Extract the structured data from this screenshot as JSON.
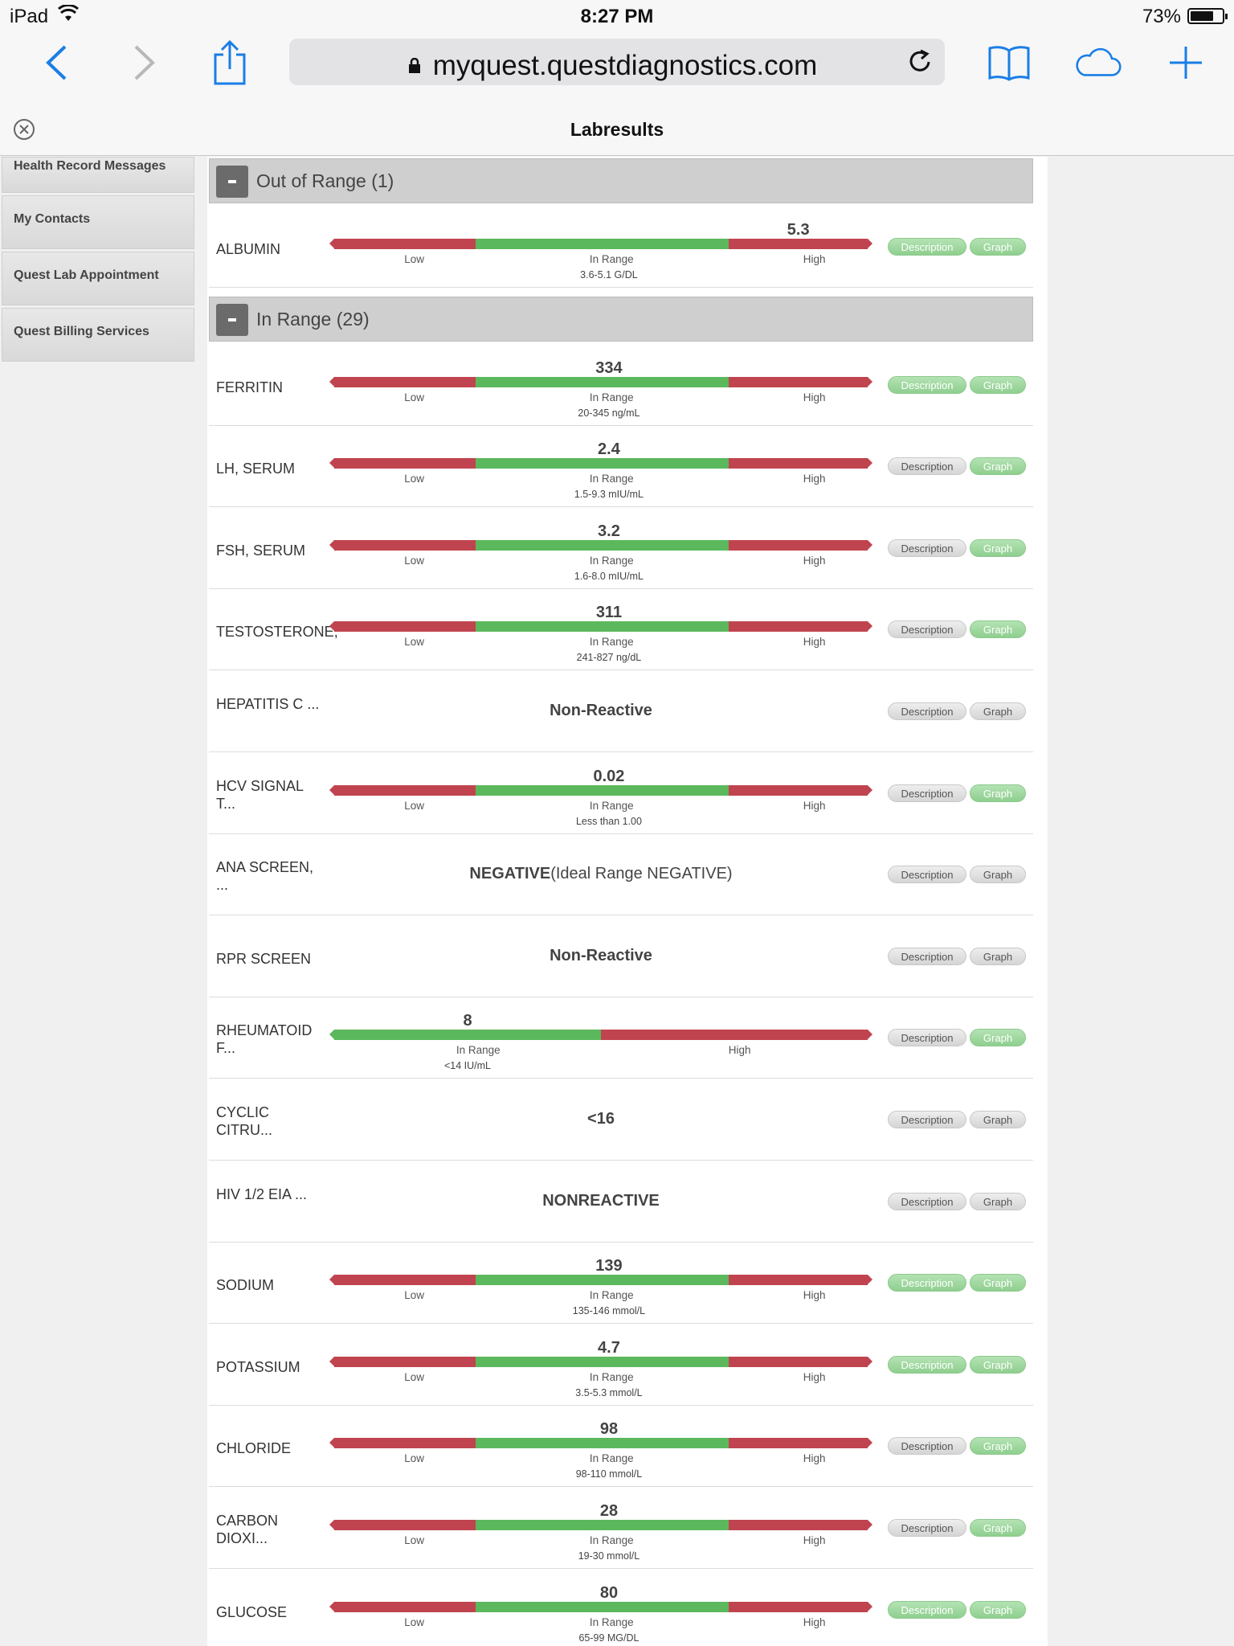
{
  "status_bar": {
    "device": "iPad",
    "time": "8:27 PM",
    "battery": "73%",
    "battery_level": 0.73
  },
  "browser": {
    "url": "myquest.questdiagnostics.com"
  },
  "page": {
    "title": "Labresults"
  },
  "sidebar": {
    "items": [
      {
        "label": "Health Record Messages"
      },
      {
        "label": "My Contacts"
      },
      {
        "label": "Quest Lab Appointment"
      },
      {
        "label": "Quest Billing Services"
      }
    ]
  },
  "labels": {
    "description": "Description",
    "graph": "Graph",
    "low": "Low",
    "in_range": "In Range",
    "high": "High"
  },
  "sections": [
    {
      "header": "Out of Range (1)",
      "rows": [
        {
          "name": "ALBUMIN",
          "type": "bar3",
          "value": "5.3",
          "range": "3.6-5.1 G/DL",
          "marker": 0.87,
          "desc_active": true,
          "graph_active": true
        }
      ]
    },
    {
      "header": "In Range (29)",
      "rows": [
        {
          "name": "FERRITIN",
          "type": "bar3",
          "value": "334",
          "range": "20-345 ng/mL",
          "marker": 0.515,
          "desc_active": true,
          "graph_active": true
        },
        {
          "name": "LH, SERUM",
          "type": "bar3",
          "value": "2.4",
          "range": "1.5-9.3 mIU/mL",
          "marker": 0.515,
          "desc_active": false,
          "graph_active": true
        },
        {
          "name": "FSH, SERUM",
          "type": "bar3",
          "value": "3.2",
          "range": "1.6-8.0 mIU/mL",
          "marker": 0.515,
          "desc_active": false,
          "graph_active": true
        },
        {
          "name": "TESTOSTERONE,",
          "type": "bar3",
          "value": "311",
          "range": "241-827 ng/dL",
          "marker": 0.515,
          "desc_active": false,
          "graph_active": true
        },
        {
          "name": "HEPATITIS C ...",
          "type": "text",
          "result": "Non-Reactive",
          "desc_active": false,
          "graph_active": false
        },
        {
          "name": "HCV SIGNAL T...",
          "type": "bar3",
          "value": "0.02",
          "range": "Less than 1.00",
          "marker": 0.515,
          "desc_active": false,
          "graph_active": true
        },
        {
          "name": "ANA SCREEN, ...",
          "type": "text",
          "result": "NEGATIVE",
          "result_extra": "(Ideal Range NEGATIVE)",
          "desc_active": false,
          "graph_active": false
        },
        {
          "name": "RPR SCREEN",
          "type": "text",
          "result": "Non-Reactive",
          "desc_active": false,
          "graph_active": false
        },
        {
          "name": "RHEUMATOID F...",
          "type": "bar2",
          "value": "8",
          "range": "<14 IU/mL",
          "marker": 0.25,
          "desc_active": false,
          "graph_active": true
        },
        {
          "name": "CYCLIC CITRU...",
          "type": "text",
          "result": "<16",
          "desc_active": false,
          "graph_active": false
        },
        {
          "name": "HIV 1/2 EIA ...",
          "type": "text",
          "result": "NONREACTIVE",
          "desc_active": false,
          "graph_active": false
        },
        {
          "name": "SODIUM",
          "type": "bar3",
          "value": "139",
          "range": "135-146 mmol/L",
          "marker": 0.515,
          "desc_active": true,
          "graph_active": true
        },
        {
          "name": "POTASSIUM",
          "type": "bar3",
          "value": "4.7",
          "range": "3.5-5.3 mmol/L",
          "marker": 0.515,
          "desc_active": true,
          "graph_active": true
        },
        {
          "name": "CHLORIDE",
          "type": "bar3",
          "value": "98",
          "range": "98-110 mmol/L",
          "marker": 0.515,
          "desc_active": false,
          "graph_active": true
        },
        {
          "name": "CARBON DIOXI...",
          "type": "bar3",
          "value": "28",
          "range": "19-30 mmol/L",
          "marker": 0.515,
          "desc_active": false,
          "graph_active": true
        },
        {
          "name": "GLUCOSE",
          "type": "bar3",
          "value": "80",
          "range": "65-99 MG/DL",
          "marker": 0.515,
          "desc_active": true,
          "graph_active": true
        }
      ]
    }
  ]
}
